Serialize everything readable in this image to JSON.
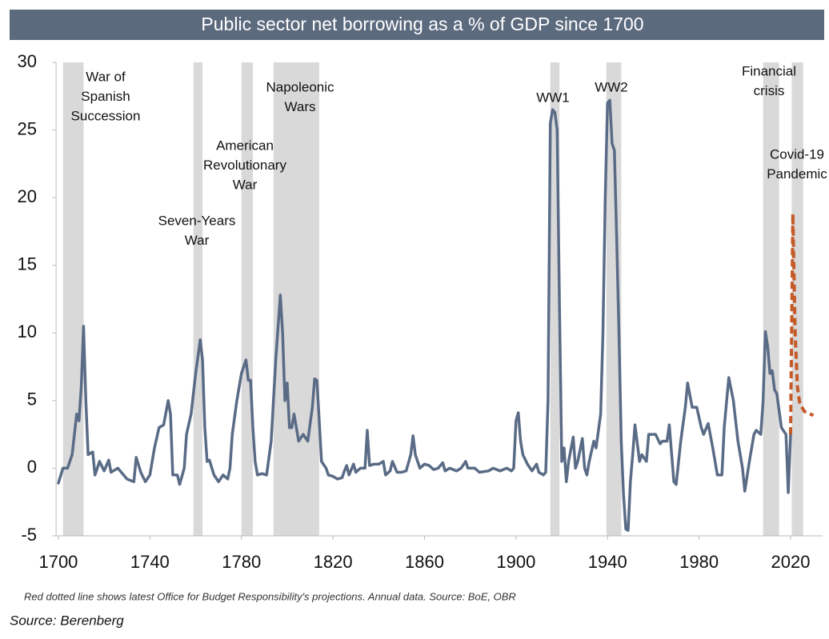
{
  "chart_data": {
    "type": "line",
    "title": "Public sector net borrowing as a % of GDP since 1700",
    "note": "Red dotted line shows latest Office for Budget Responsibility's projections. Annual data. Source: BoE, OBR",
    "source": "Source: Berenberg",
    "xlim": [
      1699,
      2034
    ],
    "xticks": [
      1700,
      1740,
      1780,
      1820,
      1860,
      1900,
      1940,
      1980,
      2020
    ],
    "ylim": [
      -5,
      30
    ],
    "yticks": [
      -5,
      0,
      5,
      10,
      15,
      20,
      25,
      30
    ],
    "band_color": "#d9d9d9",
    "shaded_periods": [
      {
        "label": [
          "War of",
          "Spanish",
          "Succession"
        ],
        "start": 1702,
        "end": 1711
      },
      {
        "label": [
          "Seven-Years",
          "War"
        ],
        "start": 1759,
        "end": 1763
      },
      {
        "label": [
          "American",
          "Revolutionary",
          "War"
        ],
        "start": 1780,
        "end": 1785
      },
      {
        "label": [
          "Napoleonic",
          "Wars"
        ],
        "start": 1794,
        "end": 1814
      },
      {
        "label": [
          "WW1"
        ],
        "start": 1915,
        "end": 1919
      },
      {
        "label": [
          "WW2"
        ],
        "start": 1939.5,
        "end": 1946
      },
      {
        "label": [
          "Financial",
          "crisis"
        ],
        "start": 2008,
        "end": 2015
      },
      {
        "label": [
          "Covid-19",
          "Pandemic"
        ],
        "start": 2020.5,
        "end": 2025.5
      }
    ],
    "series": [
      {
        "color": "#5a6b86",
        "dashed": false,
        "x": [
          1700,
          1702,
          1704,
          1706,
          1708,
          1709,
          1710,
          1711,
          1712,
          1713,
          1715,
          1716,
          1718,
          1720,
          1722,
          1723,
          1726,
          1730,
          1733,
          1734,
          1736,
          1738,
          1740,
          1742,
          1744,
          1746,
          1748,
          1749,
          1750,
          1752,
          1753,
          1755,
          1756,
          1758,
          1760,
          1762,
          1763,
          1764,
          1765,
          1766,
          1768,
          1770,
          1772,
          1774,
          1775,
          1776,
          1778,
          1780,
          1782,
          1783,
          1784,
          1785,
          1786,
          1787,
          1789,
          1791,
          1793,
          1795,
          1797,
          1798,
          1799,
          1800,
          1801,
          1802,
          1803,
          1804,
          1805,
          1807,
          1809,
          1811,
          1812,
          1813,
          1815,
          1817,
          1818,
          1820,
          1822,
          1824,
          1825,
          1826,
          1827,
          1829,
          1830,
          1832,
          1834,
          1835,
          1836,
          1838,
          1840,
          1842,
          1843,
          1845,
          1846,
          1848,
          1850,
          1852,
          1854,
          1855,
          1856,
          1858,
          1860,
          1862,
          1864,
          1866,
          1868,
          1869,
          1871,
          1874,
          1876,
          1878,
          1879,
          1882,
          1884,
          1888,
          1890,
          1893,
          1896,
          1898,
          1899,
          1900,
          1901,
          1902,
          1903,
          1905,
          1907,
          1909,
          1910,
          1912,
          1913,
          1914,
          1915,
          1916,
          1917,
          1918,
          1919,
          1920,
          1921,
          1922,
          1923,
          1925,
          1926,
          1927,
          1929,
          1930,
          1931,
          1932,
          1934,
          1935,
          1937,
          1938,
          1939,
          1940,
          1941,
          1942,
          1943,
          1944,
          1945,
          1946,
          1947,
          1948,
          1949,
          1950,
          1951,
          1952,
          1954,
          1955,
          1957,
          1958,
          1961,
          1963,
          1964,
          1966,
          1967,
          1969,
          1970,
          1972,
          1974,
          1975,
          1977,
          1979,
          1981,
          1982,
          1984,
          1986,
          1988,
          1990,
          1991,
          1993,
          1995,
          1997,
          1999,
          2000,
          2002,
          2004,
          2005,
          2007,
          2008,
          2009,
          2010,
          2011,
          2012,
          2013,
          2014,
          2016,
          2018,
          2019,
          2020
        ],
        "values": [
          -1.1,
          0,
          0,
          1,
          4,
          3.5,
          6,
          10.5,
          5,
          1,
          1.2,
          -0.5,
          0.5,
          -0.2,
          0.6,
          -0.3,
          0,
          -0.8,
          -1,
          0.8,
          -0.3,
          -1,
          -0.5,
          1.5,
          3,
          3.2,
          5,
          4,
          -0.5,
          -0.5,
          -1.2,
          0,
          2.5,
          4,
          7,
          9.5,
          8,
          3,
          0.5,
          0.6,
          -0.5,
          -1,
          -0.5,
          -0.8,
          0,
          2.5,
          5,
          7,
          8,
          6.5,
          6.5,
          3,
          0.5,
          -0.5,
          -0.4,
          -0.5,
          2,
          8,
          12.8,
          10,
          5,
          6.3,
          3,
          3,
          4,
          3,
          2,
          2.5,
          2,
          4.5,
          6.6,
          6.5,
          0.5,
          0,
          -0.5,
          -0.6,
          -0.8,
          -0.7,
          -0.2,
          0.2,
          -0.5,
          0.3,
          -0.3,
          0,
          0,
          2.8,
          0.2,
          0.3,
          0.3,
          0.5,
          -0.5,
          -0.2,
          0.5,
          -0.3,
          -0.3,
          -0.2,
          1,
          2.4,
          1,
          0,
          0.3,
          0.2,
          -0.1,
          0,
          0.4,
          -0.2,
          0,
          -0.2,
          0,
          0.5,
          0,
          0,
          -0.3,
          -0.2,
          0,
          -0.2,
          0,
          -0.2,
          0,
          3.5,
          4.1,
          2,
          1,
          0.3,
          -0.2,
          0.3,
          -0.3,
          -0.5,
          -0.3,
          5,
          25.5,
          26.5,
          26.3,
          25,
          12,
          0.5,
          1.5,
          -1,
          0.5,
          2.3,
          0,
          0.5,
          2.2,
          0,
          -0.5,
          0.5,
          2,
          1.5,
          4,
          10,
          20,
          27,
          27.2,
          24,
          23.5,
          17,
          10,
          2,
          -2,
          -4.5,
          -4.6,
          -1,
          1,
          3.2,
          0.5,
          1,
          0.5,
          2.5,
          2.5,
          1.8,
          2,
          2,
          3.2,
          -1,
          -1.2,
          2,
          4.5,
          6.3,
          4.5,
          4.5,
          3,
          2.5,
          3.3,
          1.5,
          -0.5,
          -0.5,
          3,
          6.7,
          5,
          2,
          0,
          -1.7,
          0.5,
          2.5,
          2.8,
          2.5,
          5,
          10.1,
          9,
          7,
          7.2,
          5.8,
          5.5,
          3,
          2.5,
          -1.8,
          2.5
        ]
      },
      {
        "color": "#c55a28",
        "dashed": true,
        "x": [
          2020,
          2021,
          2022,
          2023,
          2024,
          2026,
          2030
        ],
        "values": [
          2.5,
          18.8,
          10,
          6,
          4.8,
          4.2,
          3.9
        ]
      }
    ]
  }
}
